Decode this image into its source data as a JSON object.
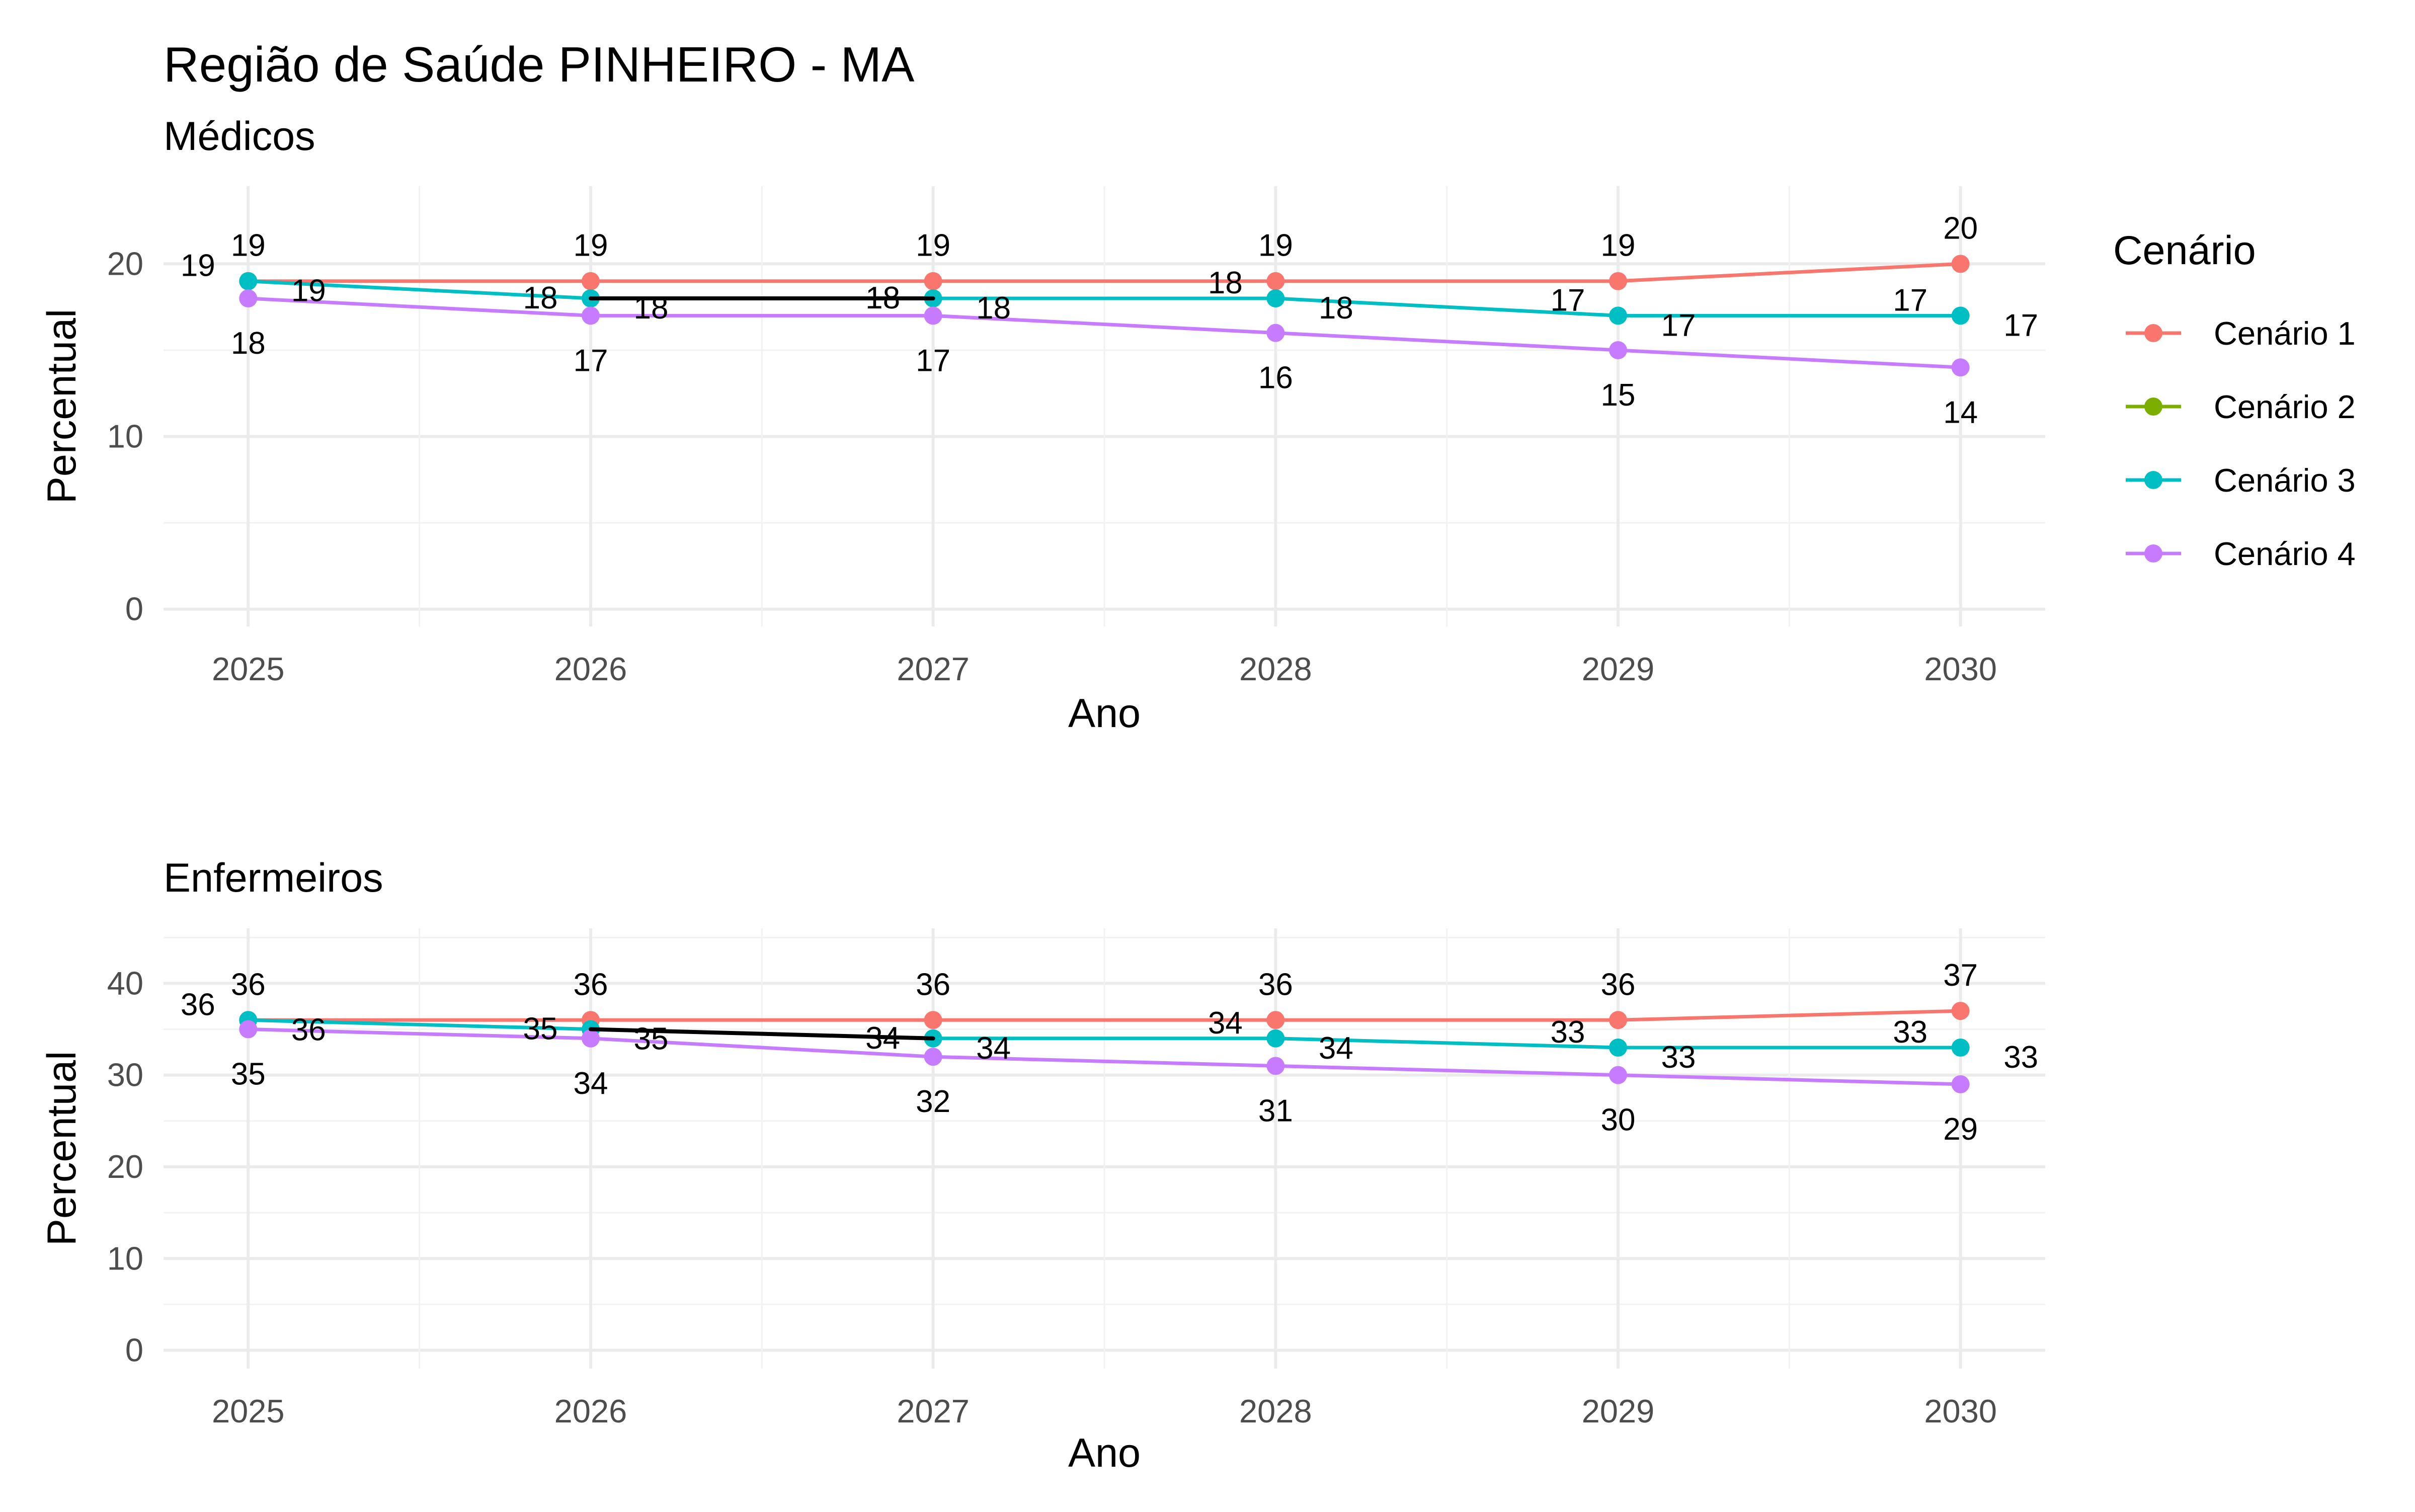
{
  "chart_data": {
    "type": "line",
    "title": "Região de Saúde PINHEIRO - MA",
    "legend": {
      "title": "Cenário",
      "placement": "right",
      "entries": [
        {
          "name": "Cenário 1",
          "color": "#F8766D"
        },
        {
          "name": "Cenário 2",
          "color": "#7CAE00"
        },
        {
          "name": "Cenário 3",
          "color": "#00BFC4"
        },
        {
          "name": "Cenário 4",
          "color": "#C77CFF"
        }
      ]
    },
    "panels": [
      {
        "subtitle": "Médicos",
        "xlabel": "Ano",
        "ylabel": "Percentual",
        "x": [
          2025,
          2026,
          2027,
          2028,
          2029,
          2030
        ],
        "xticks": [
          "2025",
          "2026",
          "2027",
          "2028",
          "2029",
          "2030"
        ],
        "ylim": [
          -1,
          24.5
        ],
        "yticks": [
          0,
          10,
          20
        ],
        "ytick_labels": [
          "0",
          "10",
          "20"
        ],
        "series": [
          {
            "name": "Cenário 1",
            "color": "#F8766D",
            "values": [
              19,
              19,
              19,
              19,
              19,
              20
            ],
            "labels": [
              "19",
              "19",
              "19",
              "19",
              "19",
              "20"
            ]
          },
          {
            "name": "Cenário 2",
            "color": "#000000",
            "values": [
              null,
              18,
              18,
              null,
              null,
              null
            ],
            "labels": [
              "",
              "18",
              "18",
              "",
              "",
              ""
            ]
          },
          {
            "name": "Cenário 3",
            "color": "#00BFC4",
            "values": [
              19,
              18,
              18,
              18,
              17,
              17
            ],
            "labels": [
              "19",
              "18",
              "18",
              "18",
              "17",
              "17"
            ]
          },
          {
            "name": "Cenário 4",
            "color": "#C77CFF",
            "values": [
              18,
              17,
              17,
              16,
              15,
              14
            ],
            "labels": [
              "18",
              "17",
              "17",
              "16",
              "15",
              "14"
            ]
          }
        ],
        "annotations": [
          {
            "text": "19",
            "x": 2025,
            "y": 19
          },
          {
            "text": "18",
            "x": 2028,
            "y": 18
          },
          {
            "text": "17",
            "x": 2029,
            "y": 17
          },
          {
            "text": "17",
            "x": 2030,
            "y": 17
          }
        ]
      },
      {
        "subtitle": "Enfermeiros",
        "xlabel": "Ano",
        "ylabel": "Percentual",
        "x": [
          2025,
          2026,
          2027,
          2028,
          2029,
          2030
        ],
        "xticks": [
          "2025",
          "2026",
          "2027",
          "2028",
          "2029",
          "2030"
        ],
        "ylim": [
          -2,
          46
        ],
        "yticks": [
          0,
          10,
          20,
          30,
          40
        ],
        "ytick_labels": [
          "0",
          "10",
          "20",
          "30",
          "40"
        ],
        "series": [
          {
            "name": "Cenário 1",
            "color": "#F8766D",
            "values": [
              36,
              36,
              36,
              36,
              36,
              37
            ],
            "labels": [
              "36",
              "36",
              "36",
              "36",
              "36",
              "37"
            ]
          },
          {
            "name": "Cenário 2",
            "color": "#000000",
            "values": [
              null,
              35,
              34,
              null,
              null,
              null
            ],
            "labels": [
              "",
              "35",
              "34",
              "",
              "",
              ""
            ]
          },
          {
            "name": "Cenário 3",
            "color": "#00BFC4",
            "values": [
              36,
              35,
              34,
              34,
              33,
              33
            ],
            "labels": [
              "36",
              "35",
              "34",
              "34",
              "33",
              "33"
            ]
          },
          {
            "name": "Cenário 4",
            "color": "#C77CFF",
            "values": [
              35,
              34,
              32,
              31,
              30,
              29
            ],
            "labels": [
              "35",
              "34",
              "32",
              "31",
              "30",
              "29"
            ]
          }
        ],
        "annotations": [
          {
            "text": "36",
            "x": 2025,
            "y": 36
          },
          {
            "text": "34",
            "x": 2028,
            "y": 34
          },
          {
            "text": "33",
            "x": 2029,
            "y": 33
          },
          {
            "text": "33",
            "x": 2030,
            "y": 33
          }
        ]
      }
    ]
  }
}
